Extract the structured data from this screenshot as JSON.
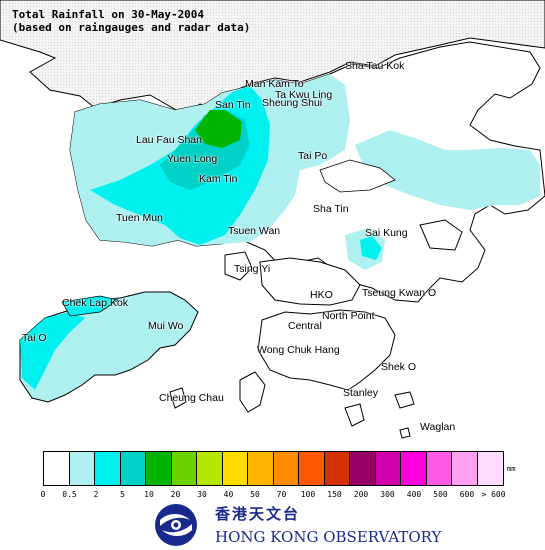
{
  "title": {
    "line1": "Total Rainfall on 30-May-2004",
    "line2": "(based on raingauges and radar data)"
  },
  "places": [
    {
      "id": "sha-tau-kok",
      "name": "Sha Tau Kok"
    },
    {
      "id": "man-kam-to",
      "name": "Man Kam To"
    },
    {
      "id": "ta-kwu-ling",
      "name": "Ta Kwu Ling"
    },
    {
      "id": "san-tin",
      "name": "San Tin"
    },
    {
      "id": "sheung-shui",
      "name": "Sheung Shui"
    },
    {
      "id": "lau-fau-shan",
      "name": "Lau Fau Shan"
    },
    {
      "id": "yuen-long",
      "name": "Yuen Long"
    },
    {
      "id": "tai-po",
      "name": "Tai Po"
    },
    {
      "id": "kam-tin",
      "name": "Kam Tin"
    },
    {
      "id": "tuen-mun",
      "name": "Tuen Mun"
    },
    {
      "id": "sha-tin",
      "name": "Sha Tin"
    },
    {
      "id": "tsuen-wan",
      "name": "Tsuen Wan"
    },
    {
      "id": "sai-kung",
      "name": "Sai Kung"
    },
    {
      "id": "tsing-yi",
      "name": "Tsing Yi"
    },
    {
      "id": "chek-lap-kok",
      "name": "Chek Lap Kok"
    },
    {
      "id": "hko",
      "name": "HKO"
    },
    {
      "id": "tseung-kwan-o",
      "name": "Tseung Kwan O"
    },
    {
      "id": "north-point",
      "name": "North Point"
    },
    {
      "id": "mui-wo",
      "name": "Mui Wo"
    },
    {
      "id": "central",
      "name": "Central"
    },
    {
      "id": "tai-o",
      "name": "Tai O"
    },
    {
      "id": "wong-chuk-hang",
      "name": "Wong Chuk Hang"
    },
    {
      "id": "shek-o",
      "name": "Shek O"
    },
    {
      "id": "stanley",
      "name": "Stanley"
    },
    {
      "id": "cheung-chau",
      "name": "Cheung Chau"
    },
    {
      "id": "waglan",
      "name": "Waglan"
    }
  ],
  "legend": {
    "unit": "mm",
    "thresholds": [
      "0",
      "0.5",
      "2",
      "5",
      "10",
      "20",
      "30",
      "40",
      "50",
      "70",
      "100",
      "150",
      "200",
      "300",
      "400",
      "500",
      "600",
      "> 600"
    ],
    "colors": [
      "#ffffff",
      "#aef0f0",
      "#00f0f0",
      "#00d2c8",
      "#00b400",
      "#6ed200",
      "#b4e600",
      "#ffdc00",
      "#ffb400",
      "#ff8c00",
      "#ff5a00",
      "#d23200",
      "#960064",
      "#d200aa",
      "#ff00dc",
      "#ff5ae6",
      "#ffa0f0",
      "#ffdcff"
    ]
  },
  "organization": {
    "name_cn": "香港天文台",
    "name_en": "HONG KONG OBSERVATORY"
  }
}
